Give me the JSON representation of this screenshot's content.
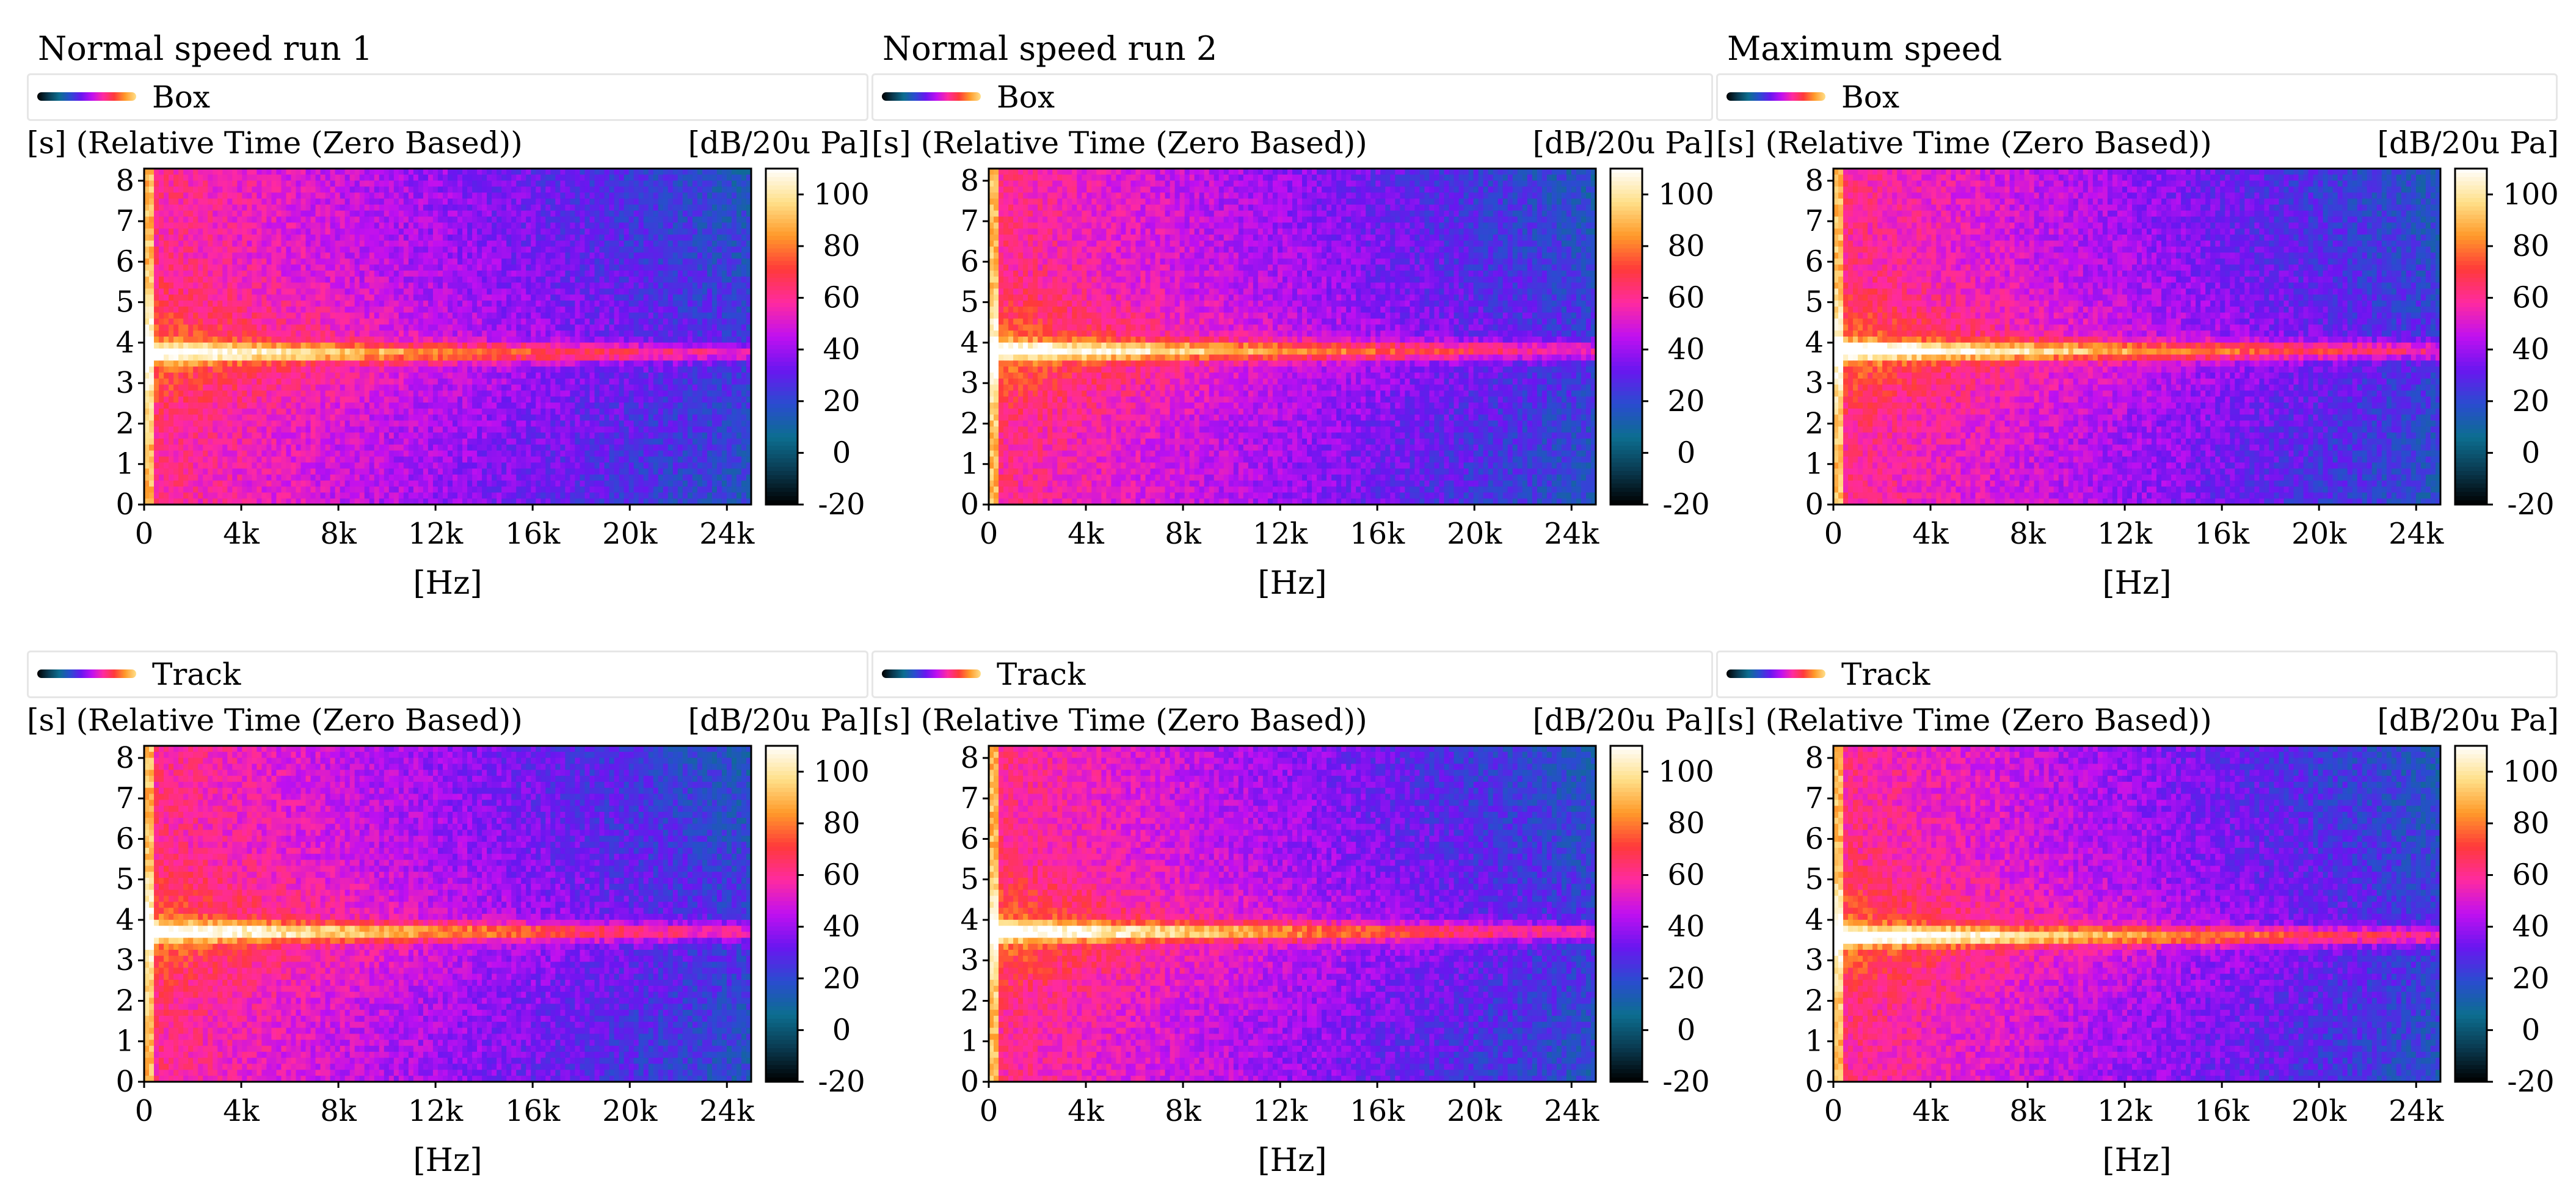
{
  "colormap": [
    "#000000",
    "#0a3a50",
    "#0c6e90",
    "#2a4cd0",
    "#6a16f0",
    "#c010f0",
    "#ff2aa0",
    "#ff3a3a",
    "#ff9a2a",
    "#ffe08a",
    "#ffffff"
  ],
  "chart_data": [
    {
      "type": "heatmap",
      "column_title": "Normal speed run 1",
      "legend": "Box",
      "ylabel": "[s] (Relative Time (Zero Based))",
      "xlabel": "[Hz]",
      "colorbar_label": "[dB/20u Pa]",
      "x_ticks": [
        "0",
        "4k",
        "8k",
        "12k",
        "16k",
        "20k",
        "24k"
      ],
      "y_ticks": [
        "0",
        "1",
        "2",
        "3",
        "4",
        "5",
        "6",
        "7",
        "8"
      ],
      "cb_ticks": [
        "-20",
        "0",
        "20",
        "40",
        "60",
        "80",
        "100"
      ],
      "xlim": [
        0,
        25000
      ],
      "ylim": [
        0,
        8.3
      ],
      "zlim": [
        -20,
        110
      ],
      "band_time_s": 3.75,
      "band_level_db": 52,
      "seed": 11
    },
    {
      "type": "heatmap",
      "column_title": "Normal speed run 2",
      "legend": "Box",
      "ylabel": "[s] (Relative Time (Zero Based))",
      "xlabel": "[Hz]",
      "colorbar_label": "[dB/20u Pa]",
      "x_ticks": [
        "0",
        "4k",
        "8k",
        "12k",
        "16k",
        "20k",
        "24k"
      ],
      "y_ticks": [
        "0",
        "1",
        "2",
        "3",
        "4",
        "5",
        "6",
        "7",
        "8"
      ],
      "cb_ticks": [
        "-20",
        "0",
        "20",
        "40",
        "60",
        "80",
        "100"
      ],
      "xlim": [
        0,
        25000
      ],
      "ylim": [
        0,
        8.3
      ],
      "zlim": [
        -20,
        110
      ],
      "band_time_s": 3.8,
      "band_level_db": 55,
      "seed": 23
    },
    {
      "type": "heatmap",
      "column_title": "Maximum speed",
      "legend": "Box",
      "ylabel": "[s] (Relative Time (Zero Based))",
      "xlabel": "[Hz]",
      "colorbar_label": "[dB/20u Pa]",
      "x_ticks": [
        "0",
        "4k",
        "8k",
        "12k",
        "16k",
        "20k",
        "24k"
      ],
      "y_ticks": [
        "0",
        "1",
        "2",
        "3",
        "4",
        "5",
        "6",
        "7",
        "8"
      ],
      "cb_ticks": [
        "-20",
        "0",
        "20",
        "40",
        "60",
        "80",
        "100"
      ],
      "xlim": [
        0,
        25000
      ],
      "ylim": [
        0,
        8.3
      ],
      "zlim": [
        -20,
        110
      ],
      "band_time_s": 3.8,
      "band_level_db": 58,
      "seed": 37
    },
    {
      "type": "heatmap",
      "column_title": "",
      "legend": "Track",
      "ylabel": "[s] (Relative Time (Zero Based))",
      "xlabel": "[Hz]",
      "colorbar_label": "[dB/20u Pa]",
      "x_ticks": [
        "0",
        "4k",
        "8k",
        "12k",
        "16k",
        "20k",
        "24k"
      ],
      "y_ticks": [
        "0",
        "1",
        "2",
        "3",
        "4",
        "5",
        "6",
        "7",
        "8"
      ],
      "cb_ticks": [
        "-20",
        "0",
        "20",
        "40",
        "60",
        "80",
        "100"
      ],
      "xlim": [
        0,
        25000
      ],
      "ylim": [
        0,
        8.3
      ],
      "zlim": [
        -20,
        110
      ],
      "band_time_s": 3.7,
      "band_level_db": 55,
      "seed": 41
    },
    {
      "type": "heatmap",
      "column_title": "",
      "legend": "Track",
      "ylabel": "[s] (Relative Time (Zero Based))",
      "xlabel": "[Hz]",
      "colorbar_label": "[dB/20u Pa]",
      "x_ticks": [
        "0",
        "4k",
        "8k",
        "12k",
        "16k",
        "20k",
        "24k"
      ],
      "y_ticks": [
        "0",
        "1",
        "2",
        "3",
        "4",
        "5",
        "6",
        "7",
        "8"
      ],
      "cb_ticks": [
        "-20",
        "0",
        "20",
        "40",
        "60",
        "80",
        "100"
      ],
      "xlim": [
        0,
        25000
      ],
      "ylim": [
        0,
        8.3
      ],
      "zlim": [
        -20,
        110
      ],
      "band_time_s": 3.7,
      "band_level_db": 55,
      "seed": 53
    },
    {
      "type": "heatmap",
      "column_title": "",
      "legend": "Track",
      "ylabel": "[s] (Relative Time (Zero Based))",
      "xlabel": "[Hz]",
      "colorbar_label": "[dB/20u Pa]",
      "x_ticks": [
        "0",
        "4k",
        "8k",
        "12k",
        "16k",
        "20k",
        "24k"
      ],
      "y_ticks": [
        "0",
        "1",
        "2",
        "3",
        "4",
        "5",
        "6",
        "7",
        "8"
      ],
      "cb_ticks": [
        "-20",
        "0",
        "20",
        "40",
        "60",
        "80",
        "100"
      ],
      "xlim": [
        0,
        25000
      ],
      "ylim": [
        0,
        8.3
      ],
      "zlim": [
        -20,
        110
      ],
      "band_time_s": 3.6,
      "band_level_db": 60,
      "seed": 67
    }
  ]
}
